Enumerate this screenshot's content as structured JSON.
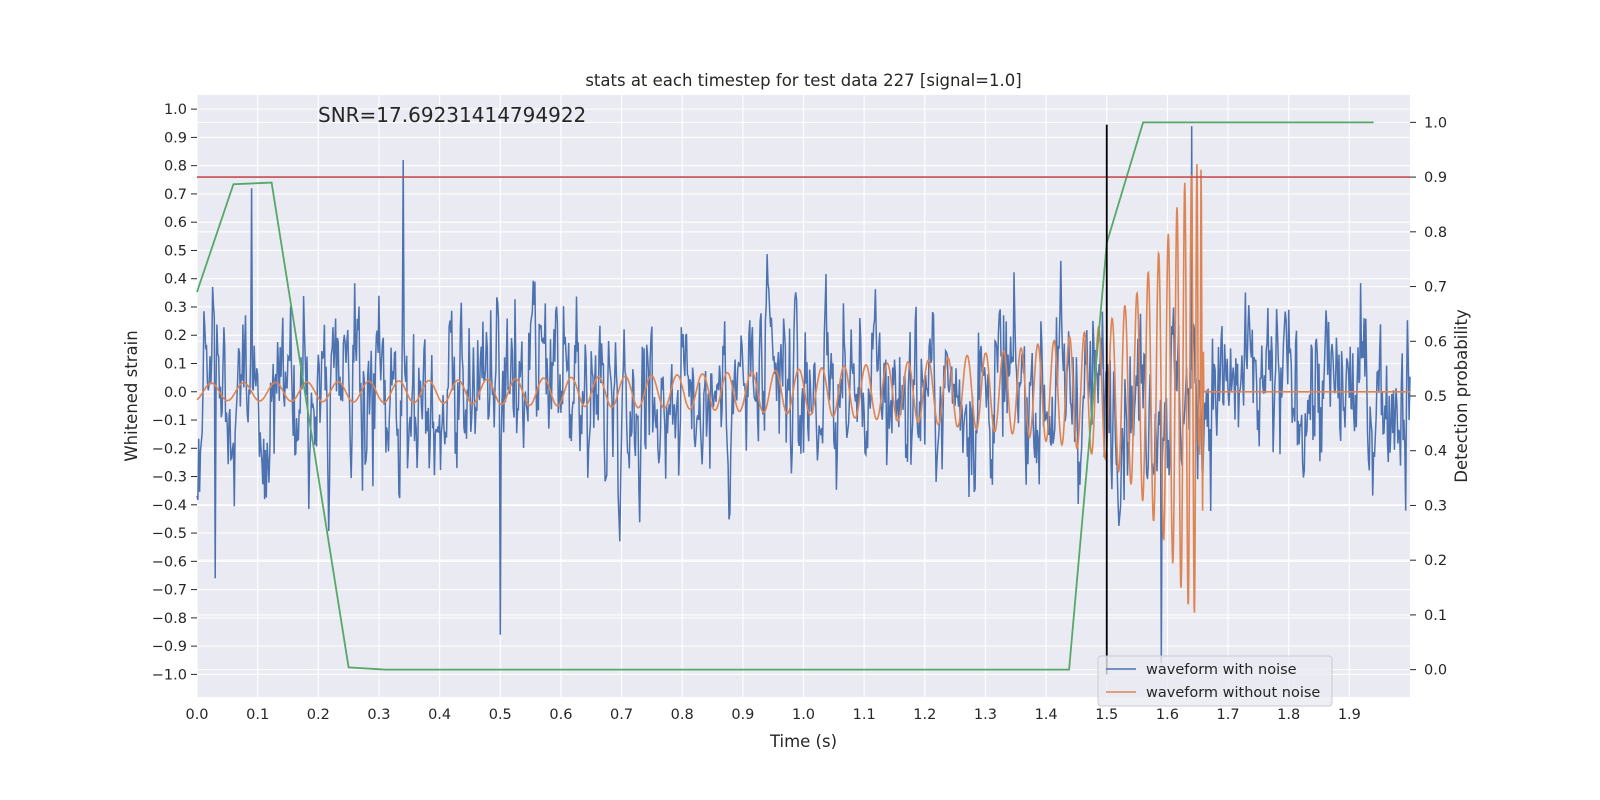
{
  "chart_data": {
    "type": "line",
    "title": "stats at each timestep for test data 227 [signal=1.0]",
    "annotation": "SNR=17.69231414794922",
    "xlabel": "Time (s)",
    "ylabel": "Whitened strain",
    "y2label": "Detection probability",
    "xlim": [
      0.0,
      2.0
    ],
    "ylim": [
      -1.08,
      1.05
    ],
    "y2lim": [
      -0.05,
      1.05
    ],
    "x_ticks": [
      0.0,
      0.1,
      0.2,
      0.3,
      0.4,
      0.5,
      0.6,
      0.7,
      0.8,
      0.9,
      1.0,
      1.1,
      1.2,
      1.3,
      1.4,
      1.5,
      1.6,
      1.7,
      1.8,
      1.9
    ],
    "x_tick_labels": [
      "0.0",
      "0.1",
      "0.2",
      "0.3",
      "0.4",
      "0.5",
      "0.6",
      "0.7",
      "0.8",
      "0.9",
      "1.0",
      "1.1",
      "1.2",
      "1.3",
      "1.4",
      "1.5",
      "1.6",
      "1.7",
      "1.8",
      "1.9"
    ],
    "y_ticks": [
      1.0,
      0.9,
      0.8,
      0.7,
      0.6,
      0.5,
      0.4,
      0.3,
      0.2,
      0.1,
      0.0,
      -0.1,
      -0.2,
      -0.3,
      -0.4,
      -0.5,
      -0.6,
      -0.7,
      -0.8,
      -0.9,
      -1.0
    ],
    "y_tick_labels": [
      "1.0",
      "0.9",
      "0.8",
      "0.7",
      "0.6",
      "0.5",
      "0.4",
      "0.3",
      "0.2",
      "0.1",
      "0.0",
      "−0.1",
      "−0.2",
      "−0.3",
      "−0.4",
      "−0.5",
      "−0.6",
      "−0.7",
      "−0.8",
      "−0.9",
      "−1.0"
    ],
    "y2_ticks": [
      1.0,
      0.9,
      0.8,
      0.7,
      0.6,
      0.5,
      0.4,
      0.3,
      0.2,
      0.1,
      0.0
    ],
    "y2_tick_labels": [
      "1.0",
      "0.9",
      "0.8",
      "0.7",
      "0.6",
      "0.5",
      "0.4",
      "0.3",
      "0.2",
      "0.1",
      "0.0"
    ],
    "grid": true,
    "legend_position": "lower-right",
    "series": [
      {
        "name": "waveform with noise",
        "color": "#4c72b0",
        "kind": "noise",
        "t_range": [
          0.0,
          2.0
        ],
        "approx_std": 0.22,
        "peaks": [
          [
            0.34,
            0.82
          ],
          [
            0.5,
            -0.86
          ],
          [
            1.59,
            -0.96
          ],
          [
            1.64,
            0.94
          ],
          [
            0.09,
            0.72
          ],
          [
            0.03,
            -0.66
          ]
        ]
      },
      {
        "name": "waveform without noise",
        "color": "#dd8452",
        "kind": "chirp",
        "points": [
          [
            0.0,
            -0.03
          ],
          [
            0.2,
            -0.035
          ],
          [
            0.4,
            -0.04
          ],
          [
            0.6,
            -0.05
          ],
          [
            0.8,
            -0.06
          ],
          [
            1.0,
            -0.08
          ],
          [
            1.2,
            -0.11
          ],
          [
            1.35,
            -0.15
          ],
          [
            1.45,
            -0.2
          ],
          [
            1.5,
            -0.24
          ],
          [
            1.55,
            -0.35
          ],
          [
            1.6,
            -0.55
          ],
          [
            1.63,
            -0.75
          ],
          [
            1.65,
            -0.81
          ],
          [
            1.655,
            0.88
          ],
          [
            1.66,
            0.12
          ],
          [
            1.665,
            0.02
          ],
          [
            2.0,
            0.0
          ]
        ]
      },
      {
        "name": "",
        "axis": "right",
        "color": "#55a868",
        "kind": "line",
        "points": [
          [
            0.0,
            0.69
          ],
          [
            0.06,
            0.887
          ],
          [
            0.123,
            0.89
          ],
          [
            0.25,
            0.004
          ],
          [
            0.31,
            0.0
          ],
          [
            1.438,
            0.0
          ],
          [
            1.5,
            0.78
          ],
          [
            1.56,
            1.0
          ],
          [
            1.94,
            1.0
          ]
        ]
      }
    ],
    "threshold_line": {
      "axis": "right",
      "y": 0.9,
      "color": "#c44e52"
    },
    "marker_line": {
      "x": 1.5,
      "y_range": [
        -1.0,
        0.945
      ],
      "color": "#000000"
    }
  }
}
